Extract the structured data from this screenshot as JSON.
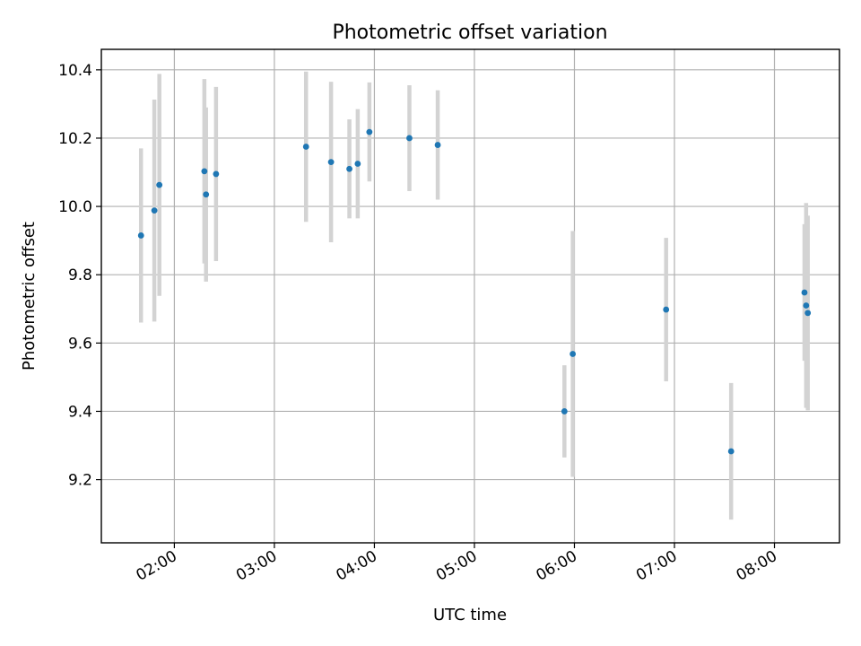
{
  "chart_data": {
    "type": "scatter",
    "title": "Photometric offset variation",
    "xlabel": "UTC time",
    "ylabel": "Photometric offset",
    "x_tick_labels": [
      "02:00",
      "03:00",
      "04:00",
      "05:00",
      "06:00",
      "07:00",
      "08:00"
    ],
    "x_tick_values_hours": [
      2,
      3,
      4,
      5,
      6,
      7,
      8
    ],
    "y_tick_labels": [
      "9.2",
      "9.4",
      "9.6",
      "9.8",
      "10.0",
      "10.2",
      "10.4"
    ],
    "y_tick_values": [
      9.2,
      9.4,
      9.6,
      9.8,
      10.0,
      10.2,
      10.4
    ],
    "xlim_hours": [
      1.27,
      8.65
    ],
    "ylim": [
      9.015,
      10.46
    ],
    "grid": true,
    "marker_color": "#1f77b4",
    "errorbar_color": "#d3d3d3",
    "points": [
      {
        "time": "01:40",
        "y": 9.915,
        "err": 0.255
      },
      {
        "time": "01:48",
        "y": 9.988,
        "err": 0.325
      },
      {
        "time": "01:51",
        "y": 10.063,
        "err": 0.325
      },
      {
        "time": "02:18",
        "y": 10.103,
        "err": 0.27
      },
      {
        "time": "02:19",
        "y": 10.035,
        "err": 0.255
      },
      {
        "time": "02:25",
        "y": 10.095,
        "err": 0.255
      },
      {
        "time": "03:19",
        "y": 10.175,
        "err": 0.22
      },
      {
        "time": "03:34",
        "y": 10.13,
        "err": 0.235
      },
      {
        "time": "03:45",
        "y": 10.11,
        "err": 0.145
      },
      {
        "time": "03:50",
        "y": 10.125,
        "err": 0.16
      },
      {
        "time": "03:57",
        "y": 10.218,
        "err": 0.145
      },
      {
        "time": "04:21",
        "y": 10.2,
        "err": 0.155
      },
      {
        "time": "04:38",
        "y": 10.18,
        "err": 0.16
      },
      {
        "time": "05:54",
        "y": 9.4,
        "err": 0.135
      },
      {
        "time": "05:59",
        "y": 9.568,
        "err": 0.36
      },
      {
        "time": "06:55",
        "y": 9.698,
        "err": 0.21
      },
      {
        "time": "07:34",
        "y": 9.283,
        "err": 0.2
      },
      {
        "time": "08:18",
        "y": 9.748,
        "err": 0.2
      },
      {
        "time": "08:19",
        "y": 9.71,
        "err": 0.3
      },
      {
        "time": "08:20",
        "y": 9.688,
        "err": 0.285
      }
    ]
  }
}
